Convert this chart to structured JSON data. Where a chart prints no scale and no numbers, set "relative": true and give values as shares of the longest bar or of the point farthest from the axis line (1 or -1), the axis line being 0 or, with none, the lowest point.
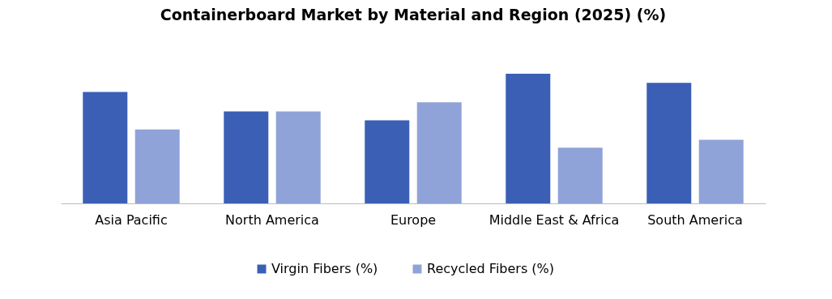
{
  "chart_data": {
    "type": "bar",
    "title": "Containerboard Market by Material and Region (2025) (%)",
    "relative": true,
    "legend": "bottom",
    "categories": [
      "Asia Pacific",
      "North America",
      "Europe",
      "Middle East & Africa",
      "South America"
    ],
    "series": [
      {
        "name": "Virgin Fibers (%)",
        "color": "#3a5fb5",
        "values": [
          0.86,
          0.71,
          0.64,
          1,
          0.93
        ]
      },
      {
        "name": "Recycled Fibers (%)",
        "color": "#8fa3d8",
        "values": [
          0.57,
          0.71,
          0.78,
          0.43,
          0.49
        ]
      }
    ]
  }
}
